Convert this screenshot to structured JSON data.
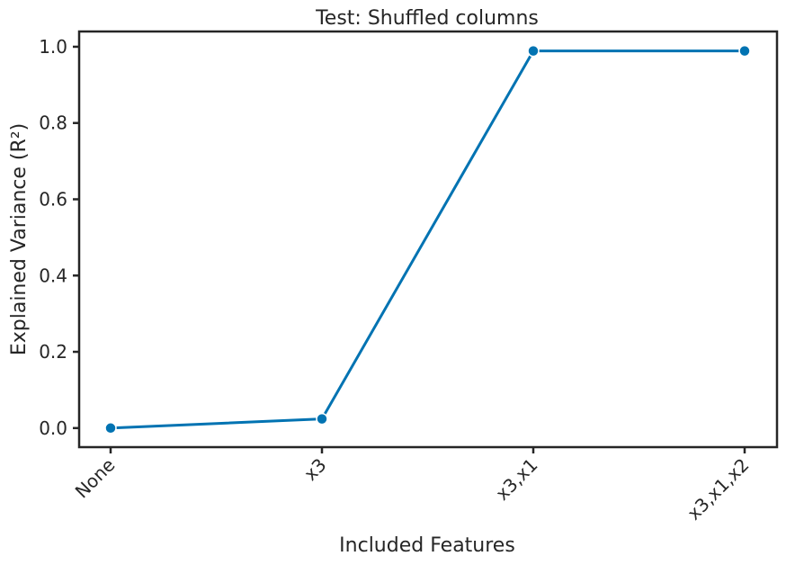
{
  "chart_data": {
    "type": "line",
    "title": "Test: Shuffled columns",
    "xlabel": "Included Features",
    "ylabel": "Explained Variance (R²)",
    "categories": [
      "None",
      "x3",
      "x3,x1",
      "x3,x1,x2"
    ],
    "series": [
      {
        "values": [
          0.0,
          0.024,
          0.989,
          0.989
        ],
        "color": "#0173b2",
        "marker": "circle"
      }
    ],
    "ylim": [
      -0.05,
      1.04
    ],
    "yticks": [
      0.0,
      0.2,
      0.4,
      0.6,
      0.8,
      1.0
    ],
    "ytick_labels": [
      "0.0",
      "0.2",
      "0.4",
      "0.6",
      "0.8",
      "1.0"
    ],
    "grid": false,
    "legend": "none",
    "x_tick_rotation": 45
  }
}
